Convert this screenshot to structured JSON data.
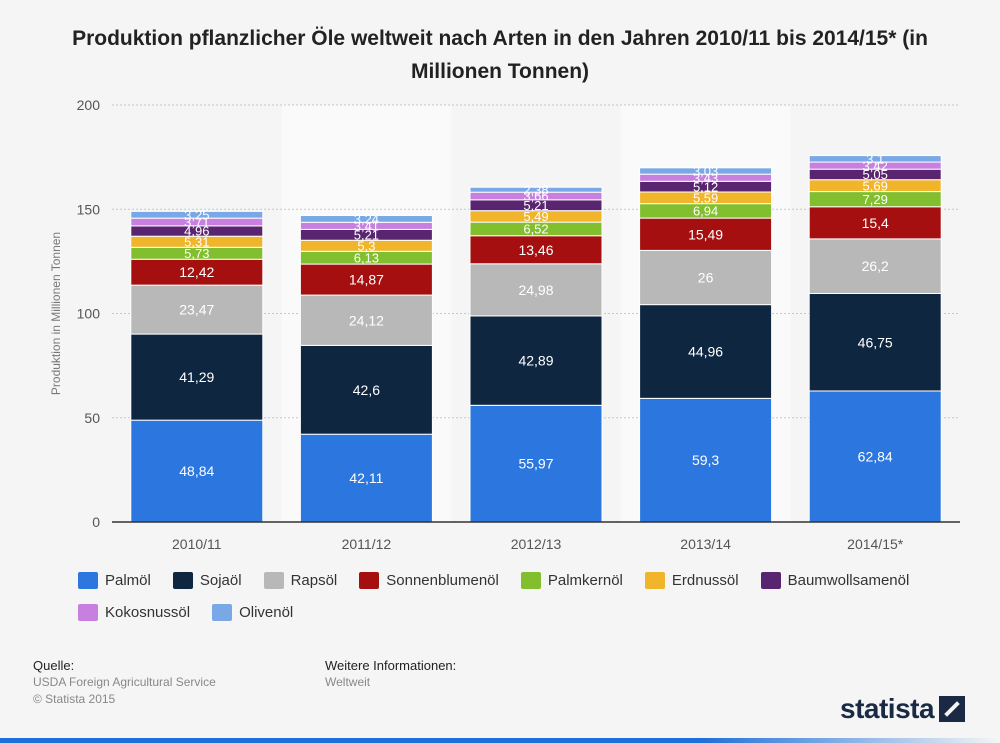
{
  "title": "Produktion pflanzlicher Öle weltweit nach Arten in den Jahren 2010/11 bis 2014/15* (in Millionen Tonnen)",
  "chart_data": {
    "type": "bar",
    "stacked": true,
    "categories": [
      "2010/11",
      "2011/12",
      "2012/13",
      "2013/14",
      "2014/15*"
    ],
    "ylabel": "Produktion in Millionen Tonnen",
    "ylim": [
      0,
      200
    ],
    "yticks": [
      0,
      50,
      100,
      150,
      200
    ],
    "grid": true,
    "legend_position": "bottom",
    "series": [
      {
        "name": "Palmöl",
        "color": "#2b76df",
        "values": [
          48.84,
          42.11,
          55.97,
          59.3,
          62.84
        ],
        "labels": [
          "48,84",
          "42,11",
          "55,97",
          "59,3",
          "62,84"
        ]
      },
      {
        "name": "Sojaöl",
        "color": "#0f2640",
        "values": [
          41.29,
          42.6,
          42.89,
          44.96,
          46.75
        ],
        "labels": [
          "41,29",
          "42,6",
          "42,89",
          "44,96",
          "46,75"
        ]
      },
      {
        "name": "Rapsöl",
        "color": "#b8b8b8",
        "values": [
          23.47,
          24.12,
          24.98,
          26,
          26.2
        ],
        "labels": [
          "23,47",
          "24,12",
          "24,98",
          "26",
          "26,2"
        ]
      },
      {
        "name": "Sonnenblumenöl",
        "color": "#a50f0f",
        "values": [
          12.42,
          14.87,
          13.46,
          15.49,
          15.4
        ],
        "labels": [
          "12,42",
          "14,87",
          "13,46",
          "15,49",
          "15,4"
        ]
      },
      {
        "name": "Palmkernöl",
        "color": "#82bf2e",
        "values": [
          5.73,
          6.13,
          6.52,
          6.94,
          7.29
        ],
        "labels": [
          "5,73",
          "6,13",
          "6,52",
          "6,94",
          "7,29"
        ]
      },
      {
        "name": "Erdnussöl",
        "color": "#f0b52a",
        "values": [
          5.31,
          5.3,
          5.49,
          5.59,
          5.69
        ],
        "labels": [
          "5,31",
          "5,3",
          "5,49",
          "5,59",
          "5,69"
        ]
      },
      {
        "name": "Baumwollsamenöl",
        "color": "#5a2570",
        "values": [
          4.96,
          5.21,
          5.21,
          5.12,
          5.05
        ],
        "labels": [
          "4,96",
          "5,21",
          "5,21",
          "5,12",
          "5,05"
        ]
      },
      {
        "name": "Kokosnussöl",
        "color": "#c77fe0",
        "values": [
          3.71,
          3.41,
          3.66,
          3.43,
          3.42
        ],
        "labels": [
          "3,71",
          "3,41",
          "3,66",
          "3,43",
          "3,42"
        ]
      },
      {
        "name": "Olivenöl",
        "color": "#79a8e6",
        "values": [
          3.25,
          3.24,
          2.38,
          3.03,
          3.1
        ],
        "labels": [
          "3,25",
          "3,24",
          "2,38",
          "3,03",
          "3,1"
        ]
      }
    ]
  },
  "footer": {
    "source_heading": "Quelle:",
    "source_lines": [
      "USDA Foreign Agricultural Service",
      "© Statista 2015"
    ],
    "info_heading": "Weitere Informationen:",
    "info_text": "Weltweit"
  },
  "brand": "statista"
}
